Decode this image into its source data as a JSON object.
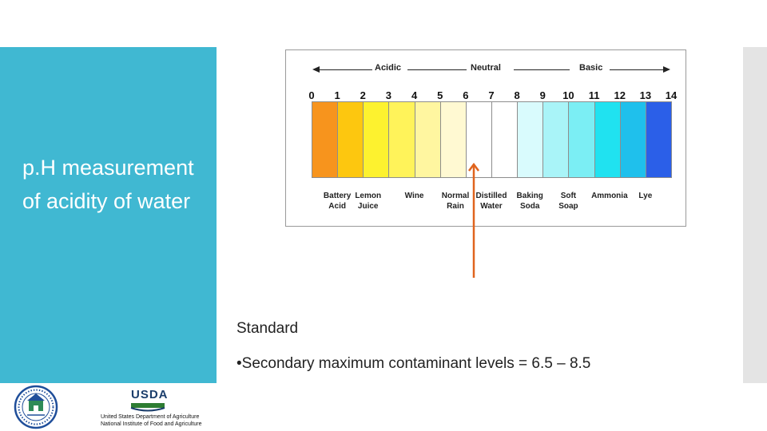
{
  "slide": {
    "title": "p.H measurement of acidity of water",
    "standard_heading": "Standard",
    "bullet_symbol": "•",
    "bullet_text": "Secondary maximum contaminant levels = 6.5 – 8.5",
    "panel_color": "#40b8d2",
    "accent_arrow_color": "#e0641e"
  },
  "ph_scale": {
    "direction_labels": {
      "acidic": "Acidic",
      "neutral": "Neutral",
      "basic": "Basic"
    },
    "numbers": [
      "0",
      "1",
      "2",
      "3",
      "4",
      "5",
      "6",
      "7",
      "8",
      "9",
      "10",
      "11",
      "12",
      "13",
      "14"
    ],
    "colors": [
      "#f7941d",
      "#fdc70f",
      "#fdf22f",
      "#fff35a",
      "#fff6a0",
      "#fff9d2",
      "#ffffff",
      "#ffffff",
      "#d9fbfd",
      "#a9f4f8",
      "#7beef4",
      "#20e2f0",
      "#1fc0ec",
      "#2b5fe8"
    ],
    "examples": [
      {
        "label": "Battery\nAcid",
        "ph": 1
      },
      {
        "label": "Lemon\nJuice",
        "ph": 2.2
      },
      {
        "label": "Wine",
        "ph": 4
      },
      {
        "label": "Normal\nRain",
        "ph": 5.6
      },
      {
        "label": "Distilled\nWater",
        "ph": 7
      },
      {
        "label": "Baking\nSoda",
        "ph": 8.5
      },
      {
        "label": "Soft\nSoap",
        "ph": 10
      },
      {
        "label": "Ammonia",
        "ph": 11.6
      },
      {
        "label": "Lye",
        "ph": 13
      }
    ]
  },
  "logos": {
    "usda_wordmark": "USDA",
    "usda_line1": "United States Department of Agriculture",
    "usda_line2": "National Institute of Food and Agriculture",
    "hud_seal_text": "DEPARTMENT OF HOUSING AND URBAN DEVELOPMENT"
  }
}
